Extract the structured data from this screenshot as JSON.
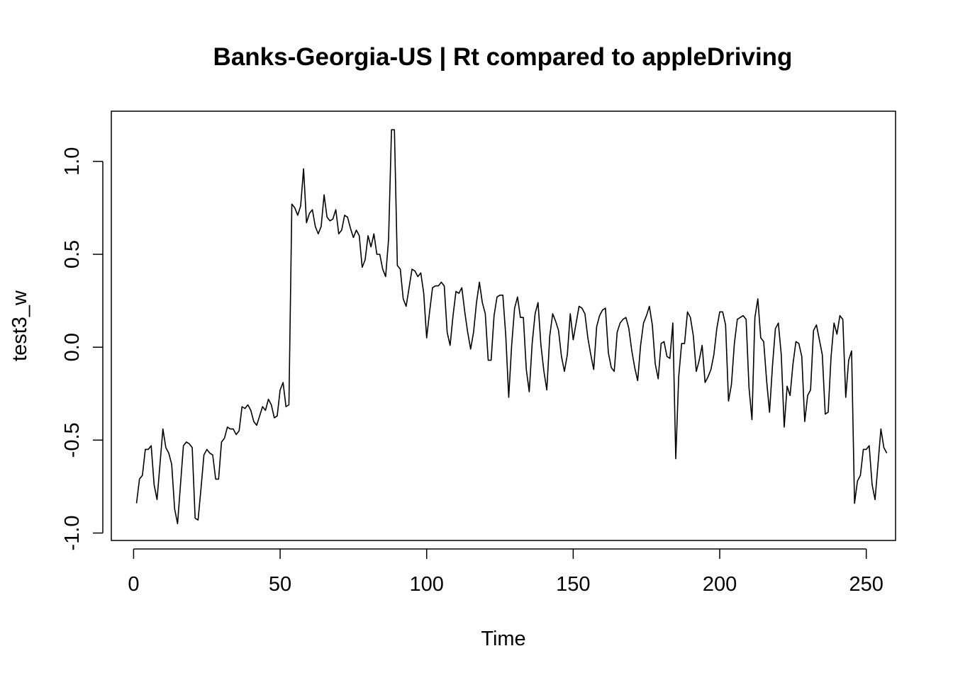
{
  "chart_data": {
    "type": "line",
    "title": "Banks-Georgia-US | Rt compared to appleDriving",
    "xlabel": "Time",
    "ylabel": "test3_w",
    "xlim": [
      -7.6,
      260
    ],
    "ylim": [
      -1.04,
      1.27
    ],
    "x_ticks": [
      0,
      50,
      100,
      150,
      200,
      250
    ],
    "x_tick_labels": [
      "0",
      "50",
      "100",
      "150",
      "200",
      "250"
    ],
    "y_ticks": [
      -1.0,
      -0.5,
      0.0,
      0.5,
      1.0
    ],
    "y_tick_labels": [
      "-1.0",
      "-0.5",
      "0.0",
      "0.5",
      "1.0"
    ],
    "grid": false,
    "legend": "none",
    "line_color": "#000000",
    "x_start": 1,
    "x_step": 1,
    "values": [
      -0.84,
      -0.71,
      -0.69,
      -0.55,
      -0.55,
      -0.53,
      -0.74,
      -0.82,
      -0.63,
      -0.44,
      -0.54,
      -0.57,
      -0.63,
      -0.87,
      -0.95,
      -0.74,
      -0.53,
      -0.51,
      -0.52,
      -0.54,
      -0.92,
      -0.93,
      -0.76,
      -0.58,
      -0.55,
      -0.57,
      -0.58,
      -0.71,
      -0.71,
      -0.51,
      -0.49,
      -0.43,
      -0.44,
      -0.44,
      -0.47,
      -0.45,
      -0.32,
      -0.33,
      -0.31,
      -0.34,
      -0.4,
      -0.42,
      -0.37,
      -0.32,
      -0.34,
      -0.28,
      -0.31,
      -0.38,
      -0.37,
      -0.23,
      -0.19,
      -0.32,
      -0.31,
      0.77,
      0.75,
      0.71,
      0.76,
      0.96,
      0.67,
      0.72,
      0.74,
      0.65,
      0.61,
      0.65,
      0.82,
      0.7,
      0.68,
      0.69,
      0.74,
      0.61,
      0.63,
      0.71,
      0.7,
      0.64,
      0.59,
      0.63,
      0.6,
      0.43,
      0.47,
      0.6,
      0.54,
      0.61,
      0.5,
      0.5,
      0.42,
      0.38,
      0.58,
      1.17,
      1.17,
      0.44,
      0.42,
      0.26,
      0.22,
      0.32,
      0.42,
      0.41,
      0.38,
      0.4,
      0.29,
      0.05,
      0.19,
      0.32,
      0.33,
      0.33,
      0.35,
      0.33,
      0.08,
      0.01,
      0.17,
      0.3,
      0.29,
      0.32,
      0.19,
      0.08,
      -0.01,
      0.08,
      0.24,
      0.35,
      0.24,
      0.18,
      -0.07,
      -0.07,
      0.17,
      0.27,
      0.28,
      0.28,
      0.06,
      -0.27,
      0.01,
      0.21,
      0.27,
      0.16,
      0.16,
      -0.12,
      -0.24,
      0.02,
      0.18,
      0.24,
      0.01,
      -0.13,
      -0.23,
      0.06,
      0.18,
      0.14,
      0.09,
      -0.05,
      -0.13,
      -0.04,
      0.18,
      0.04,
      0.13,
      0.22,
      0.21,
      0.18,
      0.05,
      -0.04,
      -0.12,
      0.11,
      0.17,
      0.2,
      0.21,
      -0.03,
      -0.11,
      -0.13,
      0.08,
      0.13,
      0.15,
      0.16,
      0.1,
      -0.02,
      -0.11,
      -0.18,
      0.01,
      0.13,
      0.17,
      0.22,
      0.12,
      -0.09,
      -0.17,
      0.02,
      0.03,
      -0.05,
      -0.06,
      0.13,
      -0.6,
      -0.16,
      0.02,
      0.02,
      0.19,
      0.16,
      0.06,
      -0.13,
      -0.07,
      0.01,
      -0.19,
      -0.16,
      -0.12,
      -0.04,
      0.1,
      0.19,
      0.19,
      0.12,
      -0.29,
      -0.2,
      0.02,
      0.15,
      0.16,
      0.17,
      0.15,
      -0.22,
      -0.39,
      0.16,
      0.26,
      0.05,
      0.03,
      -0.18,
      -0.35,
      -0.1,
      0.1,
      0.13,
      -0.04,
      -0.43,
      -0.21,
      -0.26,
      -0.09,
      0.03,
      0.02,
      -0.05,
      -0.4,
      -0.26,
      -0.23,
      0.09,
      0.12,
      0.04,
      -0.04,
      -0.36,
      -0.35,
      -0.05,
      0.13,
      0.07,
      0.17,
      0.15,
      -0.27,
      -0.07,
      -0.02,
      -0.84,
      -0.72,
      -0.69,
      -0.55,
      -0.55,
      -0.53,
      -0.74,
      -0.82,
      -0.63,
      -0.44,
      -0.54,
      -0.57
    ]
  }
}
